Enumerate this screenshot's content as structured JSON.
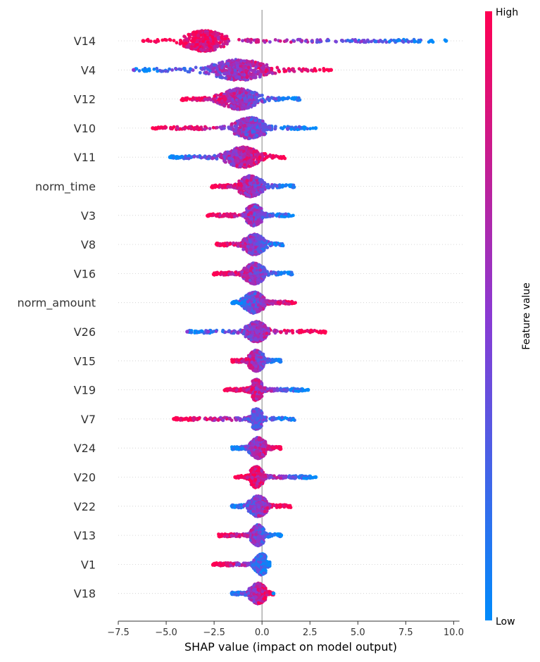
{
  "chart_data": {
    "type": "scatter",
    "subtype": "shap_beeswarm_summary",
    "xlabel": "SHAP value (impact on model output)",
    "xlim": [
      -7.5,
      10.5
    ],
    "xticks": [
      {
        "value": -7.5,
        "label": "−7.5"
      },
      {
        "value": -5.0,
        "label": "−5.0"
      },
      {
        "value": -2.5,
        "label": "−2.5"
      },
      {
        "value": 0.0,
        "label": "0.0"
      },
      {
        "value": 2.5,
        "label": "2.5"
      },
      {
        "value": 5.0,
        "label": "5.0"
      },
      {
        "value": 7.5,
        "label": "7.5"
      },
      {
        "value": 10.0,
        "label": "10.0"
      }
    ],
    "colorbar": {
      "title": "Feature value",
      "high_label": "High",
      "low_label": "Low",
      "high_color": "#ff0052",
      "low_color": "#008bfb"
    },
    "features": [
      {
        "name": "V14",
        "min": -6.2,
        "max": 9.6,
        "core": [
          -4.5,
          -1.8
        ],
        "peak": -3.0,
        "spread": 1.0,
        "highSide": "left"
      },
      {
        "name": "V4",
        "min": -6.7,
        "max": 3.6,
        "core": [
          -4.0,
          0.8
        ],
        "peak": -1.2,
        "spread": 1.3,
        "highSide": "right"
      },
      {
        "name": "V12",
        "min": -4.3,
        "max": 2.0,
        "core": [
          -2.6,
          0.2
        ],
        "peak": -1.2,
        "spread": 0.9,
        "highSide": "left"
      },
      {
        "name": "V10",
        "min": -5.7,
        "max": 2.8,
        "core": [
          -1.6,
          0.2
        ],
        "peak": -0.6,
        "spread": 0.8,
        "highSide": "left"
      },
      {
        "name": "V11",
        "min": -4.8,
        "max": 1.2,
        "core": [
          -2.2,
          0.5
        ],
        "peak": -1.0,
        "spread": 0.8,
        "highSide": "right"
      },
      {
        "name": "norm_time",
        "min": -2.7,
        "max": 1.7,
        "core": [
          -1.2,
          0.3
        ],
        "peak": -0.6,
        "spread": 0.6,
        "highSide": "left"
      },
      {
        "name": "V3",
        "min": -2.9,
        "max": 1.7,
        "core": [
          -0.8,
          0.0
        ],
        "peak": -0.4,
        "spread": 0.45,
        "highSide": "left"
      },
      {
        "name": "V8",
        "min": -2.4,
        "max": 1.1,
        "core": [
          -1.0,
          0.4
        ],
        "peak": -0.4,
        "spread": 0.5,
        "highSide": "left"
      },
      {
        "name": "V16",
        "min": -2.6,
        "max": 1.6,
        "core": [
          -1.0,
          0.2
        ],
        "peak": -0.4,
        "spread": 0.5,
        "highSide": "left"
      },
      {
        "name": "norm_amount",
        "min": -1.6,
        "max": 1.8,
        "core": [
          -1.1,
          0.2
        ],
        "peak": -0.4,
        "spread": 0.5,
        "highSide": "right"
      },
      {
        "name": "V26",
        "min": -3.9,
        "max": 3.3,
        "core": [
          -0.9,
          0.4
        ],
        "peak": -0.3,
        "spread": 0.5,
        "highSide": "right"
      },
      {
        "name": "V15",
        "min": -1.6,
        "max": 1.0,
        "core": [
          -0.7,
          0.1
        ],
        "peak": -0.3,
        "spread": 0.4,
        "highSide": "left"
      },
      {
        "name": "V19",
        "min": -2.0,
        "max": 2.4,
        "core": [
          -0.5,
          0.0
        ],
        "peak": -0.3,
        "spread": 0.35,
        "highSide": "left"
      },
      {
        "name": "V7",
        "min": -4.6,
        "max": 1.7,
        "core": [
          -0.5,
          0.0
        ],
        "peak": -0.3,
        "spread": 0.35,
        "highSide": "left"
      },
      {
        "name": "V24",
        "min": -1.6,
        "max": 1.0,
        "core": [
          -0.7,
          0.2
        ],
        "peak": -0.2,
        "spread": 0.4,
        "highSide": "right"
      },
      {
        "name": "V20",
        "min": -1.4,
        "max": 2.8,
        "core": [
          -0.6,
          0.1
        ],
        "peak": -0.3,
        "spread": 0.35,
        "highSide": "left"
      },
      {
        "name": "V22",
        "min": -1.6,
        "max": 1.5,
        "core": [
          -0.8,
          0.3
        ],
        "peak": -0.2,
        "spread": 0.45,
        "highSide": "right"
      },
      {
        "name": "V13",
        "min": -2.3,
        "max": 1.0,
        "core": [
          -0.6,
          0.1
        ],
        "peak": -0.2,
        "spread": 0.35,
        "highSide": "left"
      },
      {
        "name": "V1",
        "min": -2.6,
        "max": 0.4,
        "core": [
          -0.5,
          0.2
        ],
        "peak": 0.0,
        "spread": 0.35,
        "highSide": "left"
      },
      {
        "name": "V18",
        "min": -1.6,
        "max": 0.6,
        "core": [
          -0.7,
          0.2
        ],
        "peak": -0.2,
        "spread": 0.4,
        "highSide": "right"
      }
    ],
    "outliers": [
      {
        "feature": "V14",
        "x": -6.2,
        "level": "high"
      },
      {
        "feature": "V14",
        "x": 9.6,
        "level": "low"
      },
      {
        "feature": "V14",
        "x": 8.8,
        "level": "low"
      },
      {
        "feature": "V4",
        "x": -6.7,
        "level": "mid"
      },
      {
        "feature": "V4",
        "x": 3.6,
        "level": "high"
      },
      {
        "feature": "V10",
        "x": -5.7,
        "level": "high"
      },
      {
        "feature": "V10",
        "x": 2.8,
        "level": "low"
      },
      {
        "feature": "V11",
        "x": -4.8,
        "level": "low"
      },
      {
        "feature": "V26",
        "x": 3.3,
        "level": "high"
      },
      {
        "feature": "V26",
        "x": -3.9,
        "level": "mid"
      },
      {
        "feature": "V26",
        "x": -2.8,
        "level": "mid"
      },
      {
        "feature": "V19",
        "x": 2.4,
        "level": "low"
      },
      {
        "feature": "V7",
        "x": -4.6,
        "level": "high"
      },
      {
        "feature": "V7",
        "x": -4.4,
        "level": "high"
      },
      {
        "feature": "V20",
        "x": 2.8,
        "level": "low"
      },
      {
        "feature": "V20",
        "x": -1.4,
        "level": "high"
      },
      {
        "feature": "V13",
        "x": 1.0,
        "level": "low"
      },
      {
        "feature": "V18",
        "x": 0.6,
        "level": "low"
      }
    ]
  }
}
